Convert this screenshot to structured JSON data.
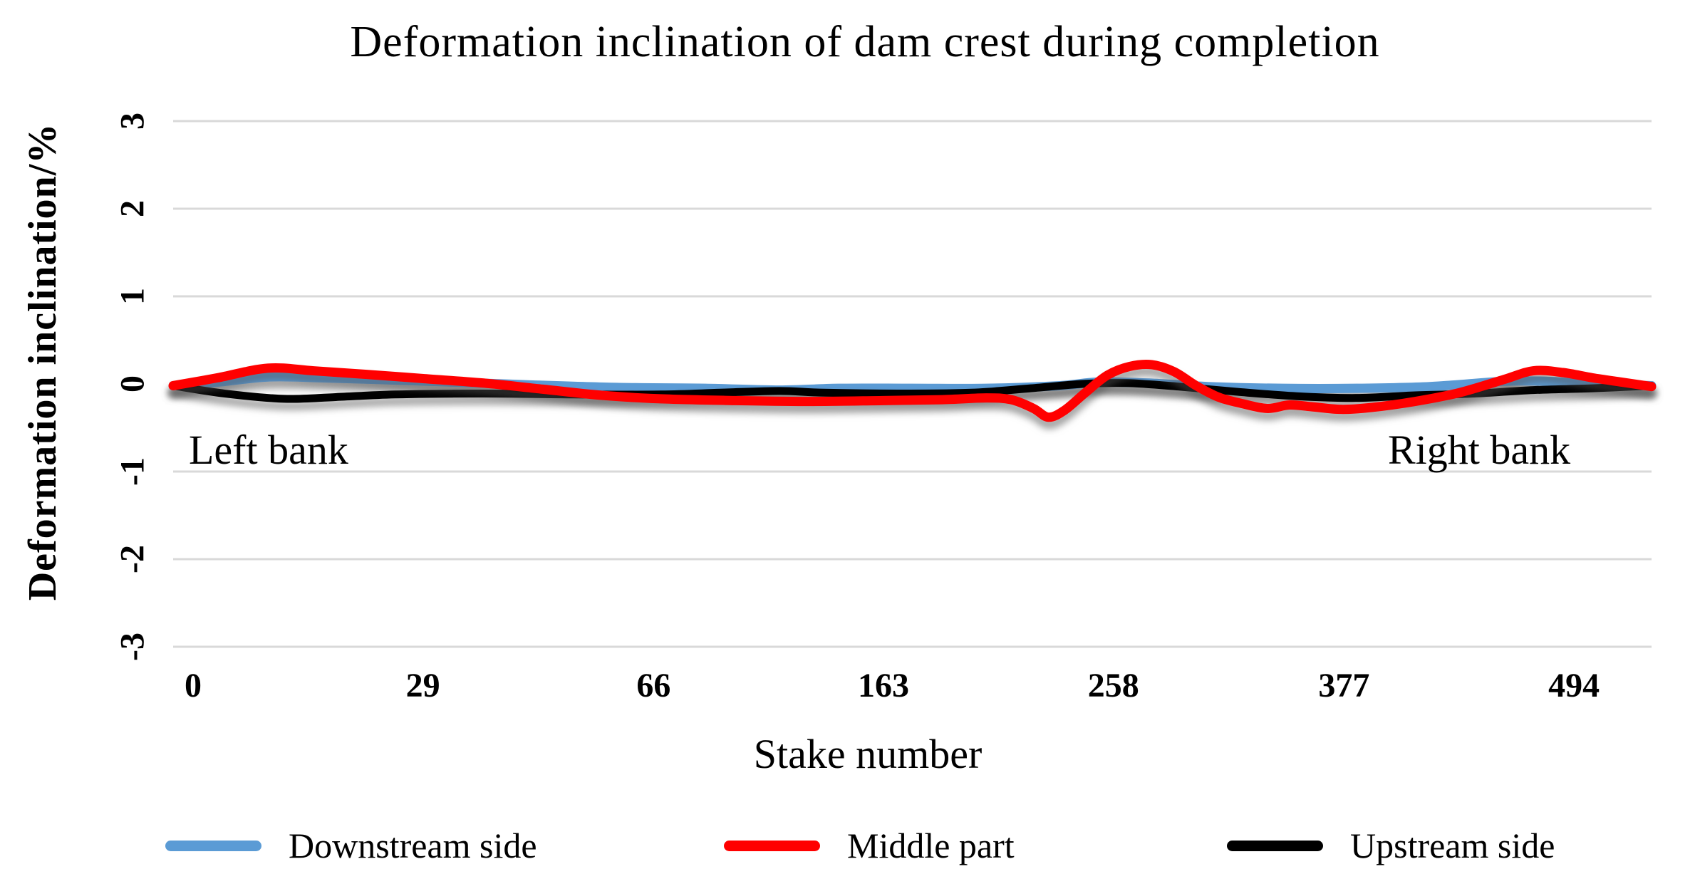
{
  "title": "Deformation inclination of dam crest during completion",
  "y_axis": {
    "label": "Deformation inclination/%",
    "tick_labels": [
      "3",
      "2",
      "1",
      "0",
      "-1",
      "-2",
      "-3"
    ],
    "tick_values": [
      3,
      2,
      1,
      0,
      -1,
      -2,
      -3
    ],
    "min": -3,
    "max": 3
  },
  "x_axis": {
    "label": "Stake number",
    "tick_labels": [
      "0",
      "29",
      "66",
      "163",
      "258",
      "377",
      "494"
    ]
  },
  "annotations": {
    "left_bank": "Left bank",
    "right_bank": "Right bank"
  },
  "legend": {
    "items": [
      {
        "label": "Downstream side",
        "color": "#5B9BD5"
      },
      {
        "label": "Middle part",
        "color": "#FF0000"
      },
      {
        "label": "Upstream side",
        "color": "#000000"
      }
    ]
  },
  "colors": {
    "gridline": "#D9D9D9",
    "text": "#000000",
    "background": "#FFFFFF"
  },
  "chart_data": {
    "type": "line",
    "title": "Deformation inclination of dam crest during completion",
    "xlabel": "Stake number",
    "ylabel": "Deformation inclination/%",
    "ylim": [
      -3,
      3
    ],
    "grid": "horizontal",
    "legend_position": "bottom",
    "x_tick_labels": [
      "0",
      "29",
      "66",
      "163",
      "258",
      "377",
      "494"
    ],
    "point_format": "[fraction_of_x_axis_0_to_1, deformation_inclination_percent]",
    "series": [
      {
        "name": "Downstream side",
        "color": "#5B9BD5",
        "points": [
          [
            0,
            -0.02
          ],
          [
            0.03,
            0.02
          ],
          [
            0.065,
            0.08
          ],
          [
            0.1,
            0.07
          ],
          [
            0.14,
            0.05
          ],
          [
            0.19,
            0.02
          ],
          [
            0.24,
            -0.01
          ],
          [
            0.3,
            -0.04
          ],
          [
            0.36,
            -0.05
          ],
          [
            0.41,
            -0.07
          ],
          [
            0.45,
            -0.05
          ],
          [
            0.5,
            -0.05
          ],
          [
            0.55,
            -0.05
          ],
          [
            0.6,
            -0.02
          ],
          [
            0.625,
            0.02
          ],
          [
            0.66,
            0.01
          ],
          [
            0.7,
            -0.03
          ],
          [
            0.75,
            -0.05
          ],
          [
            0.8,
            -0.05
          ],
          [
            0.85,
            -0.03
          ],
          [
            0.9,
            0.03
          ],
          [
            0.93,
            0.03
          ],
          [
            0.96,
            0.0
          ],
          [
            1,
            -0.02
          ]
        ]
      },
      {
        "name": "Middle part",
        "color": "#FF0000",
        "points": [
          [
            0,
            -0.02
          ],
          [
            0.03,
            0.07
          ],
          [
            0.064,
            0.18
          ],
          [
            0.095,
            0.15
          ],
          [
            0.13,
            0.11
          ],
          [
            0.17,
            0.06
          ],
          [
            0.21,
            0.01
          ],
          [
            0.25,
            -0.06
          ],
          [
            0.29,
            -0.13
          ],
          [
            0.33,
            -0.17
          ],
          [
            0.38,
            -0.19
          ],
          [
            0.43,
            -0.2
          ],
          [
            0.48,
            -0.19
          ],
          [
            0.52,
            -0.18
          ],
          [
            0.55,
            -0.16
          ],
          [
            0.567,
            -0.18
          ],
          [
            0.582,
            -0.28
          ],
          [
            0.592,
            -0.38
          ],
          [
            0.603,
            -0.3
          ],
          [
            0.617,
            -0.1
          ],
          [
            0.632,
            0.1
          ],
          [
            0.647,
            0.2
          ],
          [
            0.662,
            0.22
          ],
          [
            0.677,
            0.14
          ],
          [
            0.692,
            -0.02
          ],
          [
            0.707,
            -0.15
          ],
          [
            0.722,
            -0.22
          ],
          [
            0.74,
            -0.28
          ],
          [
            0.755,
            -0.24
          ],
          [
            0.77,
            -0.26
          ],
          [
            0.79,
            -0.29
          ],
          [
            0.81,
            -0.27
          ],
          [
            0.84,
            -0.2
          ],
          [
            0.87,
            -0.1
          ],
          [
            0.9,
            0.05
          ],
          [
            0.92,
            0.15
          ],
          [
            0.94,
            0.13
          ],
          [
            0.96,
            0.07
          ],
          [
            0.98,
            0.02
          ],
          [
            1,
            -0.03
          ]
        ]
      },
      {
        "name": "Upstream side",
        "color": "#000000",
        "points": [
          [
            0,
            -0.02
          ],
          [
            0.035,
            -0.11
          ],
          [
            0.075,
            -0.17
          ],
          [
            0.11,
            -0.15
          ],
          [
            0.15,
            -0.12
          ],
          [
            0.21,
            -0.11
          ],
          [
            0.27,
            -0.12
          ],
          [
            0.33,
            -0.12
          ],
          [
            0.37,
            -0.1
          ],
          [
            0.41,
            -0.08
          ],
          [
            0.44,
            -0.1
          ],
          [
            0.49,
            -0.11
          ],
          [
            0.54,
            -0.1
          ],
          [
            0.58,
            -0.05
          ],
          [
            0.615,
            0.0
          ],
          [
            0.645,
            0.01
          ],
          [
            0.68,
            -0.03
          ],
          [
            0.72,
            -0.09
          ],
          [
            0.76,
            -0.14
          ],
          [
            0.8,
            -0.16
          ],
          [
            0.84,
            -0.13
          ],
          [
            0.88,
            -0.11
          ],
          [
            0.92,
            -0.07
          ],
          [
            0.96,
            -0.05
          ],
          [
            1,
            -0.02
          ]
        ]
      }
    ]
  }
}
